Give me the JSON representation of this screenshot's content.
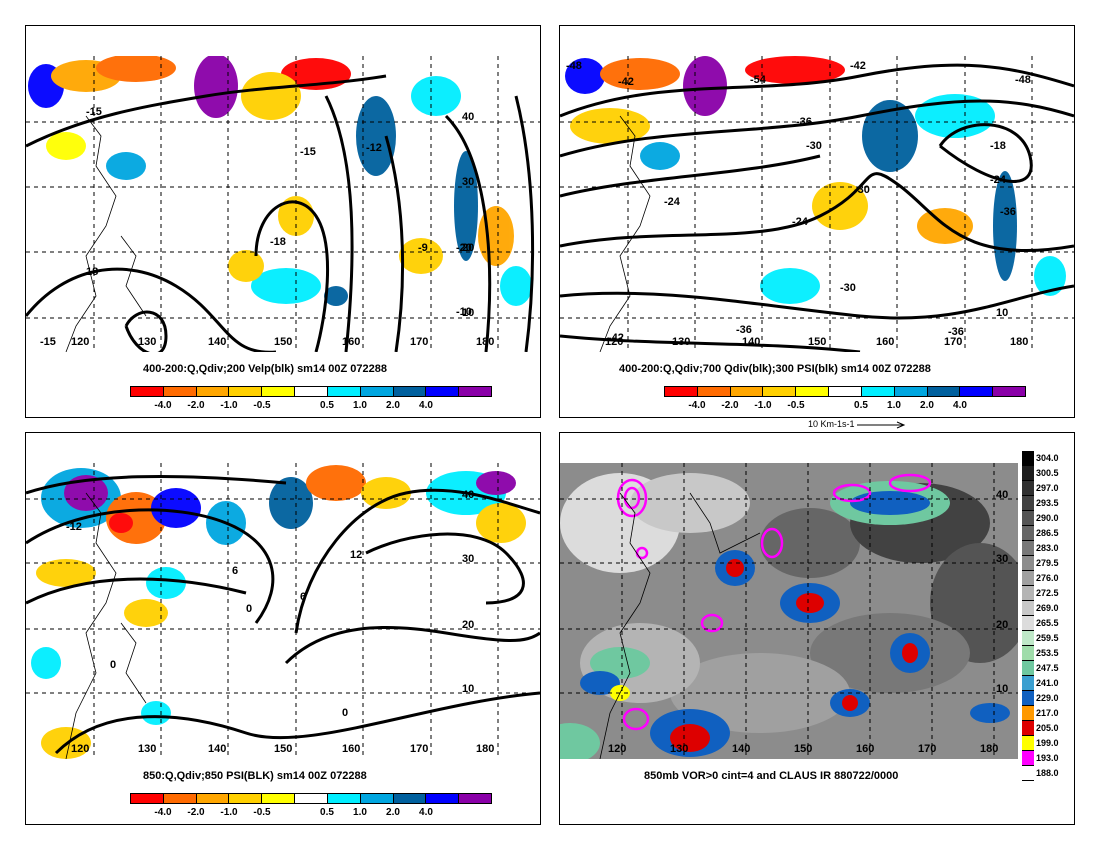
{
  "panels": [
    {
      "id": "p1",
      "caption": "400-200:Q,Qdiv;200 Velp(blk) sm14 00Z 072288",
      "lon_labels": [
        "120",
        "130",
        "140",
        "150",
        "160",
        "170",
        "180"
      ],
      "lat_labels": [
        "40",
        "30",
        "20",
        "10"
      ],
      "contour_labels": [
        "-15",
        "-15",
        "-18",
        "-12",
        "-9",
        "-20",
        "-10",
        "18",
        "-15"
      ]
    },
    {
      "id": "p2",
      "caption": "400-200:Q,Qdiv;700 Qdiv(blk);300 PSI(blk) sm14 00Z 072288",
      "lon_labels": [
        "120",
        "130",
        "140",
        "150",
        "160",
        "170",
        "180"
      ],
      "lat_labels": [
        "10"
      ],
      "contour_labels": [
        "-48",
        "-42",
        "-54",
        "-42",
        "-36",
        "-30",
        "-18",
        "-24",
        "-24",
        "-30",
        "-24",
        "-36",
        "-30",
        "-36",
        "-42",
        "-36",
        "-48"
      ],
      "ref_vector": "10 Km-1s-1"
    },
    {
      "id": "p3",
      "caption": "850:Q,Qdiv;850 PSI(BLK) sm14 00Z 072288",
      "lon_labels": [
        "120",
        "130",
        "140",
        "150",
        "160",
        "170",
        "180"
      ],
      "lat_labels": [
        "40",
        "30",
        "20",
        "10"
      ],
      "contour_labels": [
        "-12",
        "6",
        "0",
        "12",
        "6",
        "0",
        "0"
      ]
    },
    {
      "id": "p4",
      "caption": "850mb VOR>0 cint=4 and CLAUS IR 880722/0000",
      "lon_labels": [
        "120",
        "130",
        "140",
        "150",
        "160",
        "170",
        "180"
      ],
      "lat_labels": [
        "40",
        "30",
        "20",
        "10"
      ]
    }
  ],
  "qdiv_colorbar": {
    "labels": [
      "-4.0",
      "-2.0",
      "-1.0",
      "-0.5",
      "0.5",
      "1.0",
      "2.0",
      "4.0"
    ],
    "colors": [
      "#ff0000",
      "#ff6a00",
      "#ffa600",
      "#ffd000",
      "#ffff00",
      "#ffffff",
      "#00eeff",
      "#00a6e0",
      "#00609e",
      "#0000ff",
      "#8a00a8"
    ]
  },
  "ir_colorbar": {
    "labels": [
      "304.0",
      "300.5",
      "297.0",
      "293.5",
      "290.0",
      "286.5",
      "283.0",
      "279.5",
      "276.0",
      "272.5",
      "269.0",
      "265.5",
      "259.5",
      "253.5",
      "247.5",
      "241.0",
      "229.0",
      "217.0",
      "205.0",
      "199.0",
      "193.0",
      "188.0"
    ],
    "colors": [
      "#000000",
      "#1e1e1e",
      "#303030",
      "#424242",
      "#545454",
      "#666666",
      "#787878",
      "#8c8c8c",
      "#a0a0a0",
      "#b4b4b4",
      "#c8c8c8",
      "#dcdcdc",
      "#bfe8c8",
      "#9fdcaa",
      "#6fc8a0",
      "#3b9fd0",
      "#1060c0",
      "#ff9900",
      "#dd0000",
      "#ffff00",
      "#ff00ff",
      "#ffffff"
    ]
  }
}
